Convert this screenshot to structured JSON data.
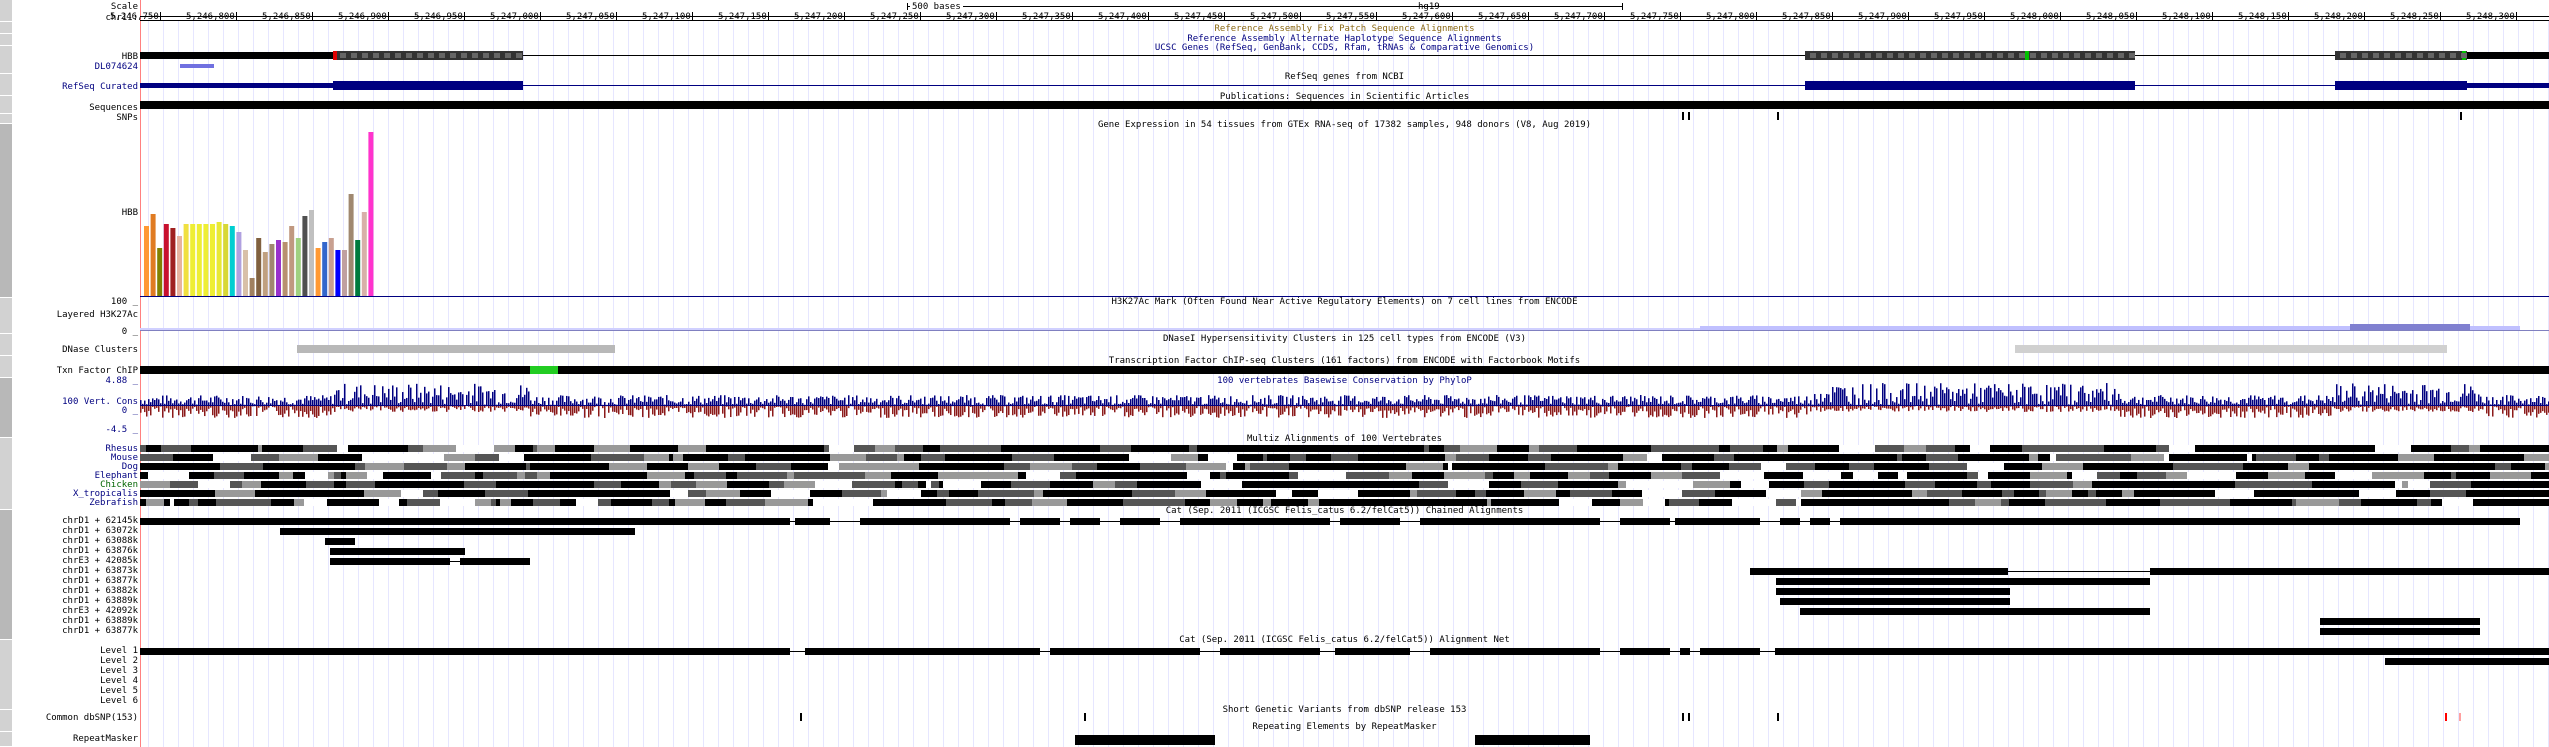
{
  "ruler": {
    "scale_label": "Scale",
    "chrom_label": "chr11:",
    "scale_bar_text": "500 bases",
    "assembly": "hg19",
    "ticks": [
      "5,246,750",
      "5,246,800",
      "5,246,850",
      "5,246,900",
      "5,246,950",
      "5,247,000",
      "5,247,050",
      "5,247,100",
      "5,247,150",
      "5,247,200",
      "5,247,250",
      "5,247,300",
      "5,247,350",
      "5,247,400",
      "5,247,450",
      "5,247,500",
      "5,247,550",
      "5,247,600",
      "5,247,650",
      "5,247,700",
      "5,247,750",
      "5,247,800",
      "5,247,850",
      "5,247,900",
      "5,247,950",
      "5,248,000",
      "5,248,050",
      "5,248,100",
      "5,248,150",
      "5,248,200",
      "5,248,250",
      "5,248,300"
    ]
  },
  "track_titles": {
    "fix_patch": "Reference Assembly Fix Patch Sequence Alignments",
    "alt_haplo": "Reference Assembly Alternate Haplotype Sequence Alignments",
    "ucsc_genes": "UCSC Genes (RefSeq, GenBank, CCDS, Rfam, tRNAs & Comparative Genomics)",
    "refseq": "RefSeq genes from NCBI",
    "publications": "Publications: Sequences in Scientific Articles",
    "gtex": "Gene Expression in 54 tissues from GTEx RNA-seq of 17382 samples, 948 donors (V8, Aug 2019)",
    "h3k27ac": "H3K27Ac Mark (Often Found Near Active Regulatory Elements) on 7 cell lines from ENCODE",
    "dnase": "DNaseI Hypersensitivity Clusters in 125 cell types from ENCODE (V3)",
    "txn": "Transcription Factor ChIP-seq Clusters (161 factors) from ENCODE with Factorbook Motifs",
    "cons": "100 vertebrates Basewise Conservation by PhyloP",
    "multiz": "Multiz Alignments of 100 Vertebrates",
    "cat_chain": "Cat (Sep. 2011 (ICGSC Felis_catus 6.2/felCat5)) Chained Alignments",
    "cat_net": "Cat (Sep. 2011 (ICGSC Felis_catus 6.2/felCat5)) Alignment Net",
    "snp": "Short Genetic Variants from dbSNP release 153",
    "rmsk": "Repeating Elements by RepeatMasker"
  },
  "labels": {
    "hbb": "HBB",
    "dl": "DL074624",
    "refseq_curated": "RefSeq Curated",
    "sequences": "Sequences",
    "snps": "SNPs",
    "gtex_hbb": "HBB",
    "h3_max": "100 _",
    "layered": "Layered H3K27Ac",
    "h3_zero": "0 _",
    "dnase_clusters": "DNase Clusters",
    "txn_chip": "Txn Factor ChIP",
    "cons_max": "4.88 _",
    "cons_name": "100 Vert. Cons",
    "cons_zero": "0 _",
    "cons_min": "-4.5 _",
    "species": [
      "Rhesus",
      "Mouse",
      "Dog",
      "Elephant",
      "Chicken",
      "X_tropicalis",
      "Zebrafish"
    ],
    "chains": [
      "chrD1 + 62145k",
      "chrD1 + 63072k",
      "chrD1 + 63088k",
      "chrD1 + 63876k",
      "chrE3 + 42085k",
      "chrD1 + 63873k",
      "chrD1 + 63877k",
      "chrD1 + 63882k",
      "chrD1 + 63889k",
      "chrE3 + 42092k",
      "chrD1 + 63889k",
      "chrD1 + 63877k"
    ],
    "levels": [
      "Level 1",
      "Level 2",
      "Level 3",
      "Level 4",
      "Level 5",
      "Level 6"
    ],
    "common_snp": "Common dbSNP(153)",
    "repeatmasker": "RepeatMasker"
  },
  "colors": {
    "gene": "#000080",
    "gtex": [
      "#ff9933",
      "#e07b22",
      "#808000",
      "#c8102e",
      "#a02020",
      "#e8b4a0",
      "#f0e040",
      "#eeee33",
      "#eeee33",
      "#eeee33",
      "#eeee33",
      "#e8e835",
      "#d8d835",
      "#00ced1",
      "#b0a0e0",
      "#d8c0a8",
      "#a08060",
      "#806040",
      "#c0a080",
      "#a08870",
      "#9932cc",
      "#b89070",
      "#c09880",
      "#a0d080",
      "#505050",
      "#c0c0c0",
      "#ff9933",
      "#3366cc",
      "#c8a090",
      "#0000ff",
      "#c0a0a0",
      "#a08870",
      "#007a3d",
      "#d8b0a8",
      "#ff33cc"
    ]
  }
}
